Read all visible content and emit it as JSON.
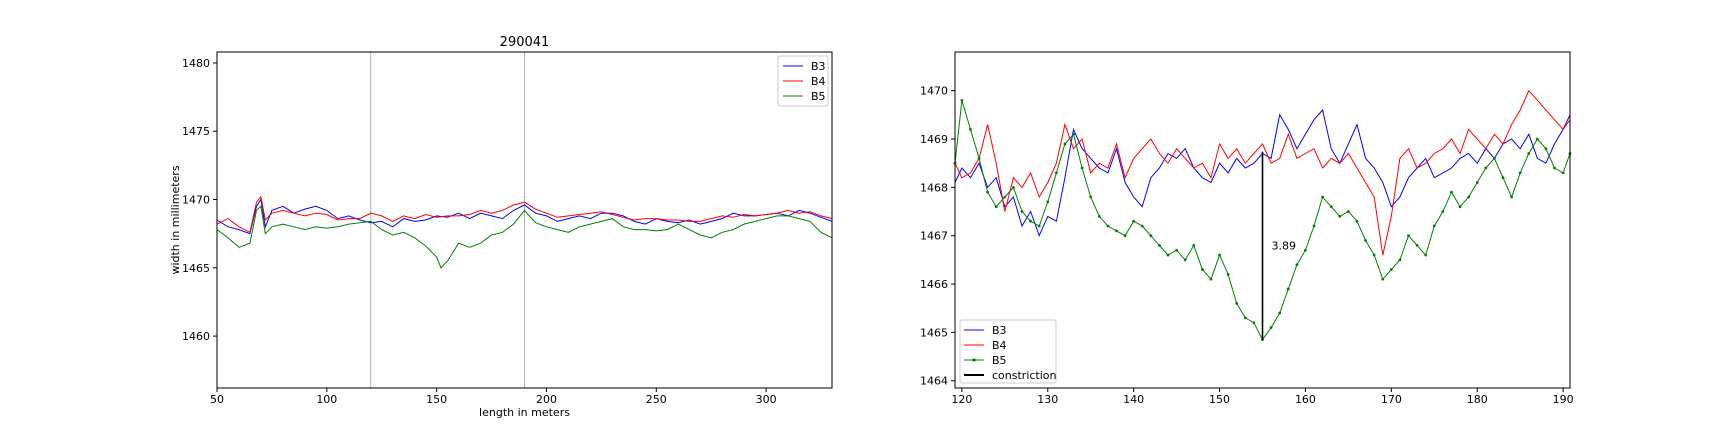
{
  "chart_data": [
    {
      "type": "line",
      "title": "290041",
      "xlabel": "length in meters",
      "ylabel": "width in millimeters",
      "xlim": [
        50,
        330
      ],
      "ylim": [
        1456.2,
        1480.8
      ],
      "xticks": [
        50,
        100,
        150,
        200,
        250,
        300
      ],
      "yticks": [
        1460,
        1465,
        1470,
        1475,
        1480
      ],
      "vlines": [
        120,
        190
      ],
      "legend_position": "top-right",
      "series": [
        {
          "name": "B3",
          "color": "#0000ff",
          "x": [
            50,
            55,
            60,
            65,
            68,
            70,
            72,
            75,
            80,
            85,
            90,
            95,
            100,
            105,
            110,
            115,
            120,
            125,
            130,
            135,
            140,
            145,
            150,
            155,
            160,
            165,
            170,
            175,
            180,
            185,
            190,
            195,
            200,
            205,
            210,
            215,
            220,
            225,
            230,
            235,
            240,
            245,
            250,
            255,
            260,
            265,
            270,
            275,
            280,
            285,
            290,
            295,
            300,
            305,
            310,
            315,
            320,
            325,
            330
          ],
          "y": [
            1468.5,
            1468,
            1467.8,
            1467.5,
            1469.5,
            1470,
            1468,
            1469.2,
            1469.5,
            1469,
            1469.3,
            1469.5,
            1469.2,
            1468.6,
            1468.8,
            1468.5,
            1468.3,
            1468.4,
            1468,
            1468.6,
            1468.4,
            1468.5,
            1468.8,
            1468.7,
            1469,
            1468.6,
            1469,
            1468.8,
            1468.6,
            1469.2,
            1469.6,
            1469,
            1468.8,
            1468.4,
            1468.6,
            1468.8,
            1468.6,
            1469,
            1469,
            1468.8,
            1468.4,
            1468.2,
            1468.6,
            1468.4,
            1468.3,
            1468.5,
            1468.2,
            1468.4,
            1468.6,
            1469,
            1468.8,
            1468.8,
            1468.9,
            1469,
            1468.8,
            1469.2,
            1469,
            1468.7,
            1468.4
          ]
        },
        {
          "name": "B4",
          "color": "#ff0000",
          "x": [
            50,
            55,
            60,
            65,
            68,
            70,
            72,
            75,
            80,
            85,
            90,
            95,
            100,
            105,
            110,
            115,
            120,
            125,
            130,
            135,
            140,
            145,
            150,
            155,
            160,
            165,
            170,
            175,
            180,
            185,
            190,
            195,
            200,
            205,
            210,
            215,
            220,
            225,
            230,
            235,
            240,
            245,
            250,
            255,
            260,
            265,
            270,
            275,
            280,
            285,
            290,
            295,
            300,
            305,
            310,
            315,
            320,
            325,
            330
          ],
          "y": [
            1468.2,
            1468.6,
            1468,
            1467.6,
            1469.8,
            1470.2,
            1468.5,
            1469,
            1469.2,
            1469,
            1468.8,
            1469,
            1468.9,
            1468.5,
            1468.6,
            1468.6,
            1469,
            1468.8,
            1468.4,
            1468.8,
            1468.6,
            1468.9,
            1468.7,
            1468.8,
            1468.8,
            1468.9,
            1469.2,
            1469,
            1469.2,
            1469.6,
            1469.8,
            1469.3,
            1469,
            1468.7,
            1468.8,
            1468.9,
            1469,
            1469.1,
            1468.9,
            1468.7,
            1468.5,
            1468.6,
            1468.6,
            1468.5,
            1468.5,
            1468.4,
            1468.4,
            1468.6,
            1468.8,
            1468.7,
            1468.9,
            1468.8,
            1468.9,
            1469,
            1469.2,
            1469,
            1469.1,
            1468.8,
            1468.6
          ]
        },
        {
          "name": "B5",
          "color": "#008000",
          "x": [
            50,
            55,
            60,
            65,
            68,
            70,
            72,
            75,
            80,
            85,
            90,
            95,
            100,
            105,
            110,
            115,
            120,
            125,
            130,
            135,
            140,
            145,
            150,
            152,
            155,
            160,
            165,
            170,
            175,
            180,
            185,
            190,
            195,
            200,
            205,
            210,
            215,
            220,
            225,
            230,
            235,
            240,
            245,
            250,
            255,
            260,
            265,
            270,
            275,
            280,
            285,
            290,
            295,
            300,
            305,
            310,
            315,
            320,
            325,
            330
          ],
          "y": [
            1467.8,
            1467.2,
            1466.5,
            1466.8,
            1469.2,
            1469.5,
            1467.5,
            1468,
            1468.2,
            1468,
            1467.8,
            1468,
            1467.9,
            1468,
            1468.2,
            1468.3,
            1468.4,
            1467.8,
            1467.4,
            1467.6,
            1467.2,
            1466.6,
            1465.8,
            1465,
            1465.5,
            1466.8,
            1466.5,
            1466.8,
            1467.4,
            1467.6,
            1468.2,
            1469.2,
            1468.3,
            1468,
            1467.8,
            1467.6,
            1468,
            1468.2,
            1468.4,
            1468.6,
            1468,
            1467.8,
            1467.8,
            1467.7,
            1467.8,
            1468.2,
            1467.8,
            1467.4,
            1467.2,
            1467.6,
            1467.8,
            1468.2,
            1468.4,
            1468.6,
            1468.8,
            1468.8,
            1468.6,
            1468.4,
            1467.6,
            1467.2
          ]
        }
      ]
    },
    {
      "type": "line",
      "title": "",
      "xlabel": "",
      "ylabel": "",
      "xlim": [
        119.2,
        190.8
      ],
      "ylim": [
        1463.85,
        1470.8
      ],
      "xticks": [
        120,
        130,
        140,
        150,
        160,
        170,
        180,
        190
      ],
      "yticks": [
        1464,
        1465,
        1466,
        1467,
        1468,
        1469,
        1470
      ],
      "legend_position": "lower-left",
      "annotation": {
        "label": "3.89",
        "x": 155,
        "y_bottom": 1464.85,
        "y_top": 1468.74
      },
      "series": [
        {
          "name": "B3",
          "color": "#0000ff",
          "x": [
            119.2,
            120,
            121,
            122,
            123,
            124,
            125,
            126,
            127,
            128,
            129,
            130,
            131,
            132,
            133,
            134,
            135,
            136,
            137,
            138,
            139,
            140,
            141,
            142,
            143,
            144,
            145,
            146,
            147,
            148,
            149,
            150,
            151,
            152,
            153,
            154,
            155,
            156,
            157,
            158,
            159,
            160,
            161,
            162,
            163,
            164,
            165,
            166,
            167,
            168,
            169,
            170,
            171,
            172,
            173,
            174,
            175,
            176,
            177,
            178,
            179,
            180,
            181,
            182,
            183,
            184,
            185,
            186,
            187,
            188,
            189,
            190,
            190.8
          ],
          "y": [
            1468.1,
            1468.4,
            1468.2,
            1468.5,
            1468,
            1468.2,
            1467.6,
            1467.8,
            1467.2,
            1467.5,
            1467,
            1467.4,
            1467.3,
            1468.2,
            1469.2,
            1468.8,
            1468.6,
            1468.4,
            1468.3,
            1468.8,
            1468.1,
            1467.8,
            1467.6,
            1468.2,
            1468.4,
            1468.7,
            1468.6,
            1468.8,
            1468.4,
            1468.2,
            1468.1,
            1468.5,
            1468.3,
            1468.6,
            1468.4,
            1468.5,
            1468.7,
            1468.6,
            1469.5,
            1469.2,
            1468.8,
            1469.1,
            1469.4,
            1469.6,
            1468.8,
            1468.5,
            1468.9,
            1469.3,
            1468.6,
            1468.4,
            1468.1,
            1467.6,
            1467.8,
            1468.2,
            1468.4,
            1468.6,
            1468.2,
            1468.3,
            1468.4,
            1468.6,
            1468.7,
            1468.5,
            1468.8,
            1468.6,
            1468.9,
            1469,
            1468.8,
            1469.1,
            1468.6,
            1468.5,
            1468.9,
            1469.2,
            1469.5
          ]
        },
        {
          "name": "B4",
          "color": "#ff0000",
          "x": [
            119.2,
            120,
            121,
            122,
            123,
            124,
            125,
            126,
            127,
            128,
            129,
            130,
            131,
            132,
            133,
            134,
            135,
            136,
            137,
            138,
            139,
            140,
            141,
            142,
            143,
            144,
            145,
            146,
            147,
            148,
            149,
            150,
            151,
            152,
            153,
            154,
            155,
            156,
            157,
            158,
            159,
            160,
            161,
            162,
            163,
            164,
            165,
            166,
            167,
            168,
            169,
            170,
            171,
            172,
            173,
            174,
            175,
            176,
            177,
            178,
            179,
            180,
            181,
            182,
            183,
            184,
            185,
            186,
            187,
            188,
            189,
            190,
            190.8
          ],
          "y": [
            1468.5,
            1468.2,
            1468.3,
            1468.6,
            1469.3,
            1468.5,
            1467.5,
            1468.2,
            1468,
            1468.3,
            1467.8,
            1468.1,
            1468.5,
            1469.3,
            1468.8,
            1469,
            1468.3,
            1468.5,
            1468.4,
            1468.9,
            1468.2,
            1468.6,
            1468.8,
            1469,
            1468.7,
            1468.5,
            1468.8,
            1468.6,
            1468.4,
            1468.5,
            1468.2,
            1468.9,
            1468.6,
            1468.8,
            1468.5,
            1468.7,
            1468.9,
            1468.5,
            1468.6,
            1469.1,
            1468.6,
            1468.7,
            1468.8,
            1468.4,
            1468.6,
            1468.5,
            1468.7,
            1468.4,
            1468.1,
            1467.8,
            1466.6,
            1467.4,
            1468.6,
            1468.8,
            1468.4,
            1468.5,
            1468.7,
            1468.8,
            1469,
            1468.7,
            1469.2,
            1469,
            1468.8,
            1469.1,
            1468.9,
            1469.3,
            1469.6,
            1470,
            1469.8,
            1469.6,
            1469.4,
            1469.2,
            1469.4
          ]
        },
        {
          "name": "B5",
          "color": "#008000",
          "x": [
            119.2,
            120,
            121,
            122,
            123,
            124,
            125,
            126,
            127,
            128,
            129,
            130,
            131,
            132,
            133,
            134,
            135,
            136,
            137,
            138,
            139,
            140,
            141,
            142,
            143,
            144,
            145,
            146,
            147,
            148,
            149,
            150,
            151,
            152,
            153,
            154,
            155,
            156,
            157,
            158,
            159,
            160,
            161,
            162,
            163,
            164,
            165,
            166,
            167,
            168,
            169,
            170,
            171,
            172,
            173,
            174,
            175,
            176,
            177,
            178,
            179,
            180,
            181,
            182,
            183,
            184,
            185,
            186,
            187,
            188,
            189,
            190,
            190.8
          ],
          "y": [
            1468.5,
            1469.8,
            1469.2,
            1468.6,
            1467.9,
            1467.6,
            1467.8,
            1468,
            1467.5,
            1467.3,
            1467.2,
            1467.7,
            1468.3,
            1468.9,
            1469.1,
            1468.4,
            1467.8,
            1467.4,
            1467.2,
            1467.1,
            1467,
            1467.3,
            1467.2,
            1467,
            1466.8,
            1466.6,
            1466.7,
            1466.5,
            1466.8,
            1466.3,
            1466.1,
            1466.6,
            1466.2,
            1465.6,
            1465.3,
            1465.2,
            1464.85,
            1465.1,
            1465.4,
            1465.9,
            1466.4,
            1466.7,
            1467.2,
            1467.8,
            1467.6,
            1467.4,
            1467.5,
            1467.3,
            1466.9,
            1466.6,
            1466.1,
            1466.3,
            1466.5,
            1467,
            1466.8,
            1466.6,
            1467.2,
            1467.5,
            1467.9,
            1467.6,
            1467.8,
            1468.1,
            1468.4,
            1468.6,
            1468.2,
            1467.8,
            1468.3,
            1468.7,
            1469,
            1468.8,
            1468.4,
            1468.3,
            1468.7
          ]
        },
        {
          "name": "constriction",
          "color": "#000000",
          "x": [
            155,
            155
          ],
          "y": [
            1464.85,
            1468.74
          ]
        }
      ]
    }
  ]
}
